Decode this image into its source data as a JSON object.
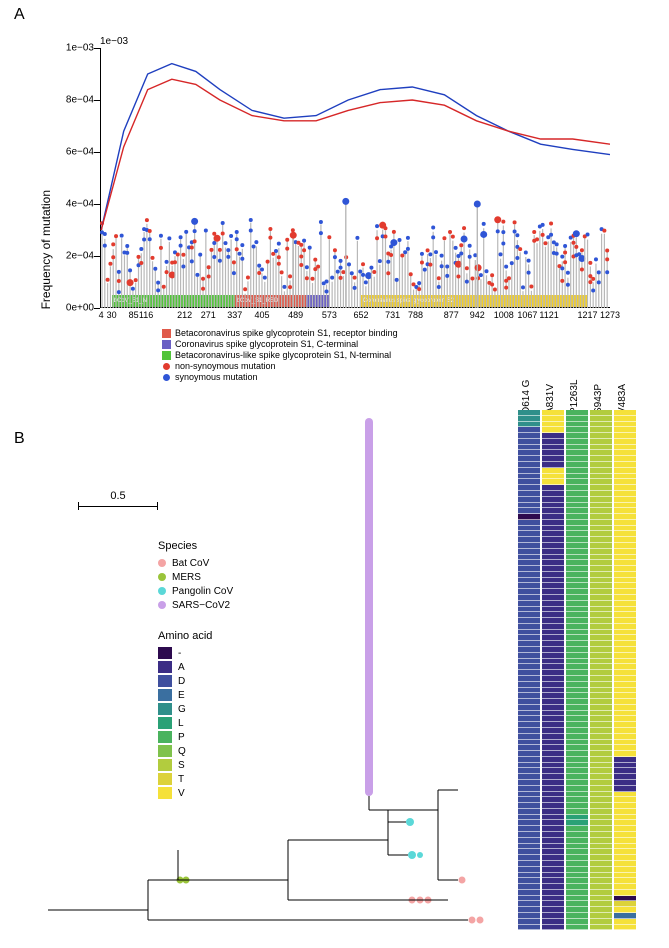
{
  "panelA": {
    "label": "A",
    "y_exponent": "1e−03",
    "y_title": "Frequency of mutation",
    "y_axis": {
      "min": 0,
      "max": 0.001,
      "ticks": [
        0,
        0.0002,
        0.0004,
        0.0006,
        0.0008,
        0.001
      ],
      "tick_labels": [
        "0e+00",
        "2e−04",
        "4e−04",
        "6e−04",
        "8e−04",
        "1e−03"
      ]
    },
    "x_axis": {
      "min": 1,
      "max": 1273,
      "tick_positions": [
        4,
        30,
        85,
        116,
        212,
        271,
        337,
        405,
        489,
        573,
        652,
        731,
        788,
        877,
        942,
        1008,
        1067,
        1121,
        1217,
        1273
      ],
      "tick_labels": [
        "4",
        "30",
        "85",
        "116",
        "212",
        "271",
        "337",
        "405",
        "489",
        "573",
        "652",
        "731",
        "788",
        "877",
        "942",
        "1008",
        "1067",
        "1121",
        "1217",
        "1273"
      ]
    },
    "domains": [
      {
        "label": "bCoV_S1_N",
        "start": 30,
        "end": 337,
        "color": "#52c43a"
      },
      {
        "label": "bCoV_S1_RBD",
        "start": 337,
        "end": 516,
        "color": "#e05a4a"
      },
      {
        "label": "",
        "start": 516,
        "end": 573,
        "color": "#6a5fc4"
      },
      {
        "label": "Coronavirus spike glycoprotein S2",
        "start": 652,
        "end": 1217,
        "color": "#f2cf2c"
      }
    ],
    "curves": {
      "red": {
        "color": "#d62728",
        "width": 1.4,
        "points": [
          [
            4,
            0.0003
          ],
          [
            60,
            0.00062
          ],
          [
            120,
            0.00084
          ],
          [
            180,
            0.00088
          ],
          [
            240,
            0.00086
          ],
          [
            300,
            0.0008
          ],
          [
            380,
            0.00074
          ],
          [
            460,
            0.00072
          ],
          [
            540,
            0.00072
          ],
          [
            620,
            0.00076
          ],
          [
            700,
            0.00079
          ],
          [
            780,
            0.0008
          ],
          [
            860,
            0.00078
          ],
          [
            940,
            0.00072
          ],
          [
            1020,
            0.00068
          ],
          [
            1100,
            0.00065
          ],
          [
            1180,
            0.00065
          ],
          [
            1273,
            0.00063
          ]
        ]
      },
      "blue": {
        "color": "#1f3fbf",
        "width": 1.4,
        "points": [
          [
            4,
            0.0003
          ],
          [
            60,
            0.00068
          ],
          [
            120,
            0.0009
          ],
          [
            180,
            0.00094
          ],
          [
            240,
            0.00091
          ],
          [
            300,
            0.00084
          ],
          [
            380,
            0.00076
          ],
          [
            460,
            0.00073
          ],
          [
            540,
            0.00074
          ],
          [
            620,
            0.0008
          ],
          [
            700,
            0.00084
          ],
          [
            780,
            0.00085
          ],
          [
            860,
            0.00082
          ],
          [
            940,
            0.00074
          ],
          [
            1020,
            0.00068
          ],
          [
            1100,
            0.00063
          ],
          [
            1180,
            0.00061
          ],
          [
            1273,
            0.00059
          ]
        ]
      }
    },
    "lollipop_colors": {
      "ns": "#e23b2e",
      "syn": "#2f55d6",
      "stem": "#b8b8b8"
    },
    "legend": [
      {
        "type": "sq",
        "color": "#e05a4a",
        "label": "Betacoronavirus spike glycoprotein S1, receptor binding"
      },
      {
        "type": "sq",
        "color": "#6a5fc4",
        "label": "Coronavirus spike glycoprotein S1, C-terminal"
      },
      {
        "type": "sq",
        "color": "#52c43a",
        "label": "Betacoronavirus-like spike glycoprotein S1, N-terminal"
      },
      {
        "type": "dot",
        "color": "#e23b2e",
        "label": "non-synoymous  mutation"
      },
      {
        "type": "dot",
        "color": "#2f55d6",
        "label": "synoymous mutation"
      }
    ]
  },
  "panelB": {
    "label": "B",
    "scale_label": "0.5",
    "species_legend": {
      "title": "Species",
      "items": [
        {
          "color": "#f4a4a4",
          "label": "Bat CoV"
        },
        {
          "color": "#9ac43a",
          "label": "MERS"
        },
        {
          "color": "#5bd8d8",
          "label": "Pangolin CoV"
        },
        {
          "color": "#c9a0e8",
          "label": "SARS−CoV2"
        }
      ]
    },
    "aa_legend": {
      "title": "Amino acid",
      "items": [
        {
          "code": "-",
          "color": "#2d0a4e"
        },
        {
          "code": "A",
          "color": "#3b2d85"
        },
        {
          "code": "D",
          "color": "#3f4f9e"
        },
        {
          "code": "E",
          "color": "#3a6fa0"
        },
        {
          "code": "G",
          "color": "#2f8f8a"
        },
        {
          "code": "L",
          "color": "#2aa176"
        },
        {
          "code": "P",
          "color": "#4ab35e"
        },
        {
          "code": "Q",
          "color": "#7fc24c"
        },
        {
          "code": "S",
          "color": "#b2cc3e"
        },
        {
          "code": "T",
          "color": "#dcd23a"
        },
        {
          "code": "V",
          "color": "#f5e13a"
        }
      ]
    },
    "heatmap": {
      "columns": [
        "D614 G",
        "A831V",
        "P1263L",
        "S943P",
        "V483A"
      ],
      "n_rows": 90,
      "col_base": [
        "D",
        "A",
        "P",
        "S",
        "V"
      ],
      "col_variants": {
        "0": [
          {
            "rows": [
              0,
              3
            ],
            "aa": "G"
          },
          {
            "rows": [
              18,
              19
            ],
            "aa": "-"
          }
        ],
        "1": [
          {
            "rows": [
              0,
              4
            ],
            "aa": "V"
          },
          {
            "rows": [
              10,
              13
            ],
            "aa": "V"
          }
        ],
        "2": [
          {
            "rows": [
              70,
              72
            ],
            "aa": "L"
          }
        ],
        "3": [
          {
            "rows": [
              0,
              90
            ],
            "aa": "S"
          }
        ],
        "4": [
          {
            "rows": [
              60,
              66
            ],
            "aa": "A"
          },
          {
            "rows": [
              84,
              85
            ],
            "aa": "-"
          },
          {
            "rows": [
              85,
              86
            ],
            "aa": "T"
          },
          {
            "rows": [
              87,
              88
            ],
            "aa": "E"
          }
        ]
      }
    },
    "tree": {
      "tip_colors": {
        "sars": "#c9a0e8",
        "pang": "#5bd8d8",
        "bat": "#f4a4a4",
        "mers": "#9ac43a"
      }
    }
  }
}
